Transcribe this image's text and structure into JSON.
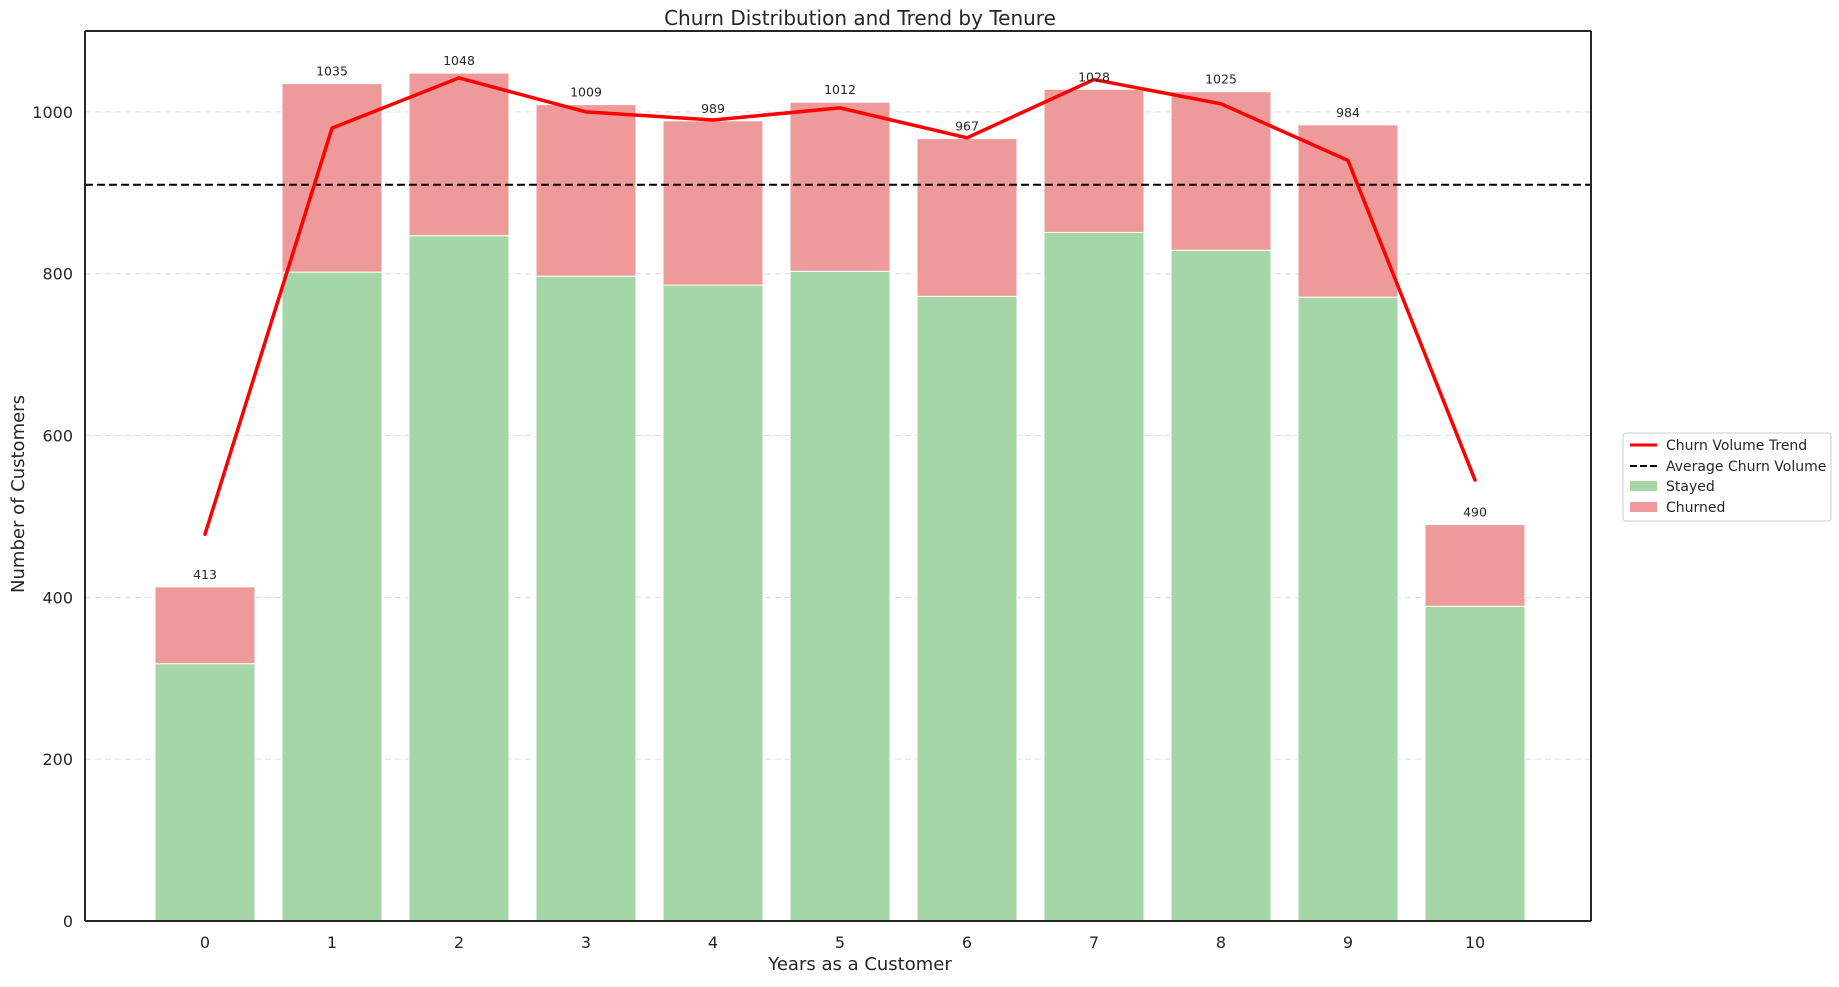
{
  "chart_data": {
    "type": "bar",
    "title": "Churn Distribution and Trend by Tenure",
    "xlabel": "Years as a Customer",
    "ylabel": "Number of Customers",
    "categories": [
      "0",
      "1",
      "2",
      "3",
      "4",
      "5",
      "6",
      "7",
      "8",
      "9",
      "10"
    ],
    "ylim": [
      0,
      1100
    ],
    "yticks": [
      0,
      200,
      400,
      600,
      800,
      1000
    ],
    "grid": "horizontal-dashed",
    "series": [
      {
        "name": "Stayed",
        "kind": "stacked-bar",
        "color": "#a5d6a7",
        "values": [
          318,
          802,
          847,
          797,
          786,
          803,
          772,
          851,
          829,
          771,
          389
        ]
      },
      {
        "name": "Churned",
        "kind": "stacked-bar",
        "color": "#ef9a9a",
        "values": [
          95,
          233,
          201,
          212,
          203,
          209,
          195,
          177,
          196,
          213,
          101
        ]
      },
      {
        "name": "Churn Volume Trend",
        "kind": "line",
        "color": "#ff0000",
        "values": [
          478,
          980,
          1042,
          1000,
          990,
          1005,
          968,
          1040,
          1010,
          940,
          545
        ]
      }
    ],
    "reference_lines": [
      {
        "name": "Average Churn Volume",
        "value": 910,
        "style": "dashed",
        "color": "#000000"
      }
    ],
    "data_labels": [
      "413",
      "1035",
      "1048",
      "1009",
      "989",
      "1012",
      "967",
      "1028",
      "1025",
      "984",
      "490"
    ],
    "legend": {
      "placement": "right",
      "entries": [
        {
          "label": "Churn Volume Trend",
          "kind": "line",
          "color": "#ff0000"
        },
        {
          "label": "Average Churn Volume",
          "kind": "dashed-line",
          "color": "#000000"
        },
        {
          "label": "Stayed",
          "kind": "patch",
          "color": "#a5d6a7"
        },
        {
          "label": "Churned",
          "kind": "patch",
          "color": "#ef9a9a"
        }
      ]
    }
  }
}
